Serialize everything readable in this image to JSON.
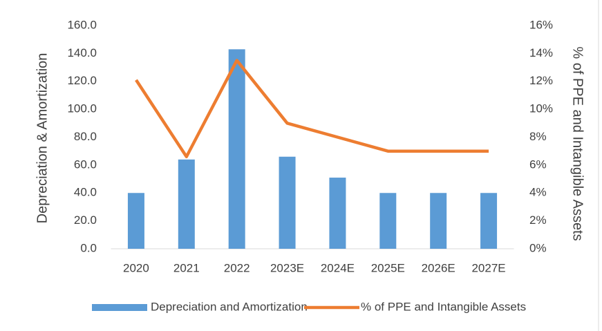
{
  "chart_data": {
    "type": "bar_line",
    "y_label": "Depreciation & Amortization",
    "y2_label": "% of PPE and Intangible Assets",
    "categories": [
      "2020",
      "2021",
      "2022",
      "2023E",
      "2024E",
      "2025E",
      "2026E",
      "2027E"
    ],
    "series": [
      {
        "name": "Depreciation and Amortization",
        "color": "#5b9bd5",
        "type": "bar",
        "values": [
          40,
          64,
          143,
          66,
          51,
          40,
          40,
          40
        ]
      },
      {
        "name": "% of PPE and Intangible Assets",
        "color": "#ed7d31",
        "type": "line",
        "axis": "y2",
        "values": [
          12.1,
          6.6,
          13.5,
          9.0,
          8.0,
          7.0,
          7.0,
          7.0
        ]
      }
    ],
    "ylim": [
      0,
      160
    ],
    "yticks": [
      {
        "value": 0,
        "label": "0.0"
      },
      {
        "value": 20,
        "label": "20.0"
      },
      {
        "value": 40,
        "label": "40.0"
      },
      {
        "value": 60,
        "label": "60.0"
      },
      {
        "value": 80,
        "label": "80.0"
      },
      {
        "value": 100,
        "label": "100.0"
      },
      {
        "value": 120,
        "label": "120.0"
      },
      {
        "value": 140,
        "label": "140.0"
      },
      {
        "value": 160,
        "label": "160.0"
      }
    ],
    "y2lim": [
      0,
      16
    ],
    "y2ticks": [
      {
        "value": 0,
        "label": "0%"
      },
      {
        "value": 2,
        "label": "2%"
      },
      {
        "value": 4,
        "label": "4%"
      },
      {
        "value": 6,
        "label": "6%"
      },
      {
        "value": 8,
        "label": "8%"
      },
      {
        "value": 10,
        "label": "10%"
      },
      {
        "value": 12,
        "label": "12%"
      },
      {
        "value": 14,
        "label": "14%"
      },
      {
        "value": 16,
        "label": "16%"
      }
    ],
    "legend": "bottom",
    "grid": false
  }
}
